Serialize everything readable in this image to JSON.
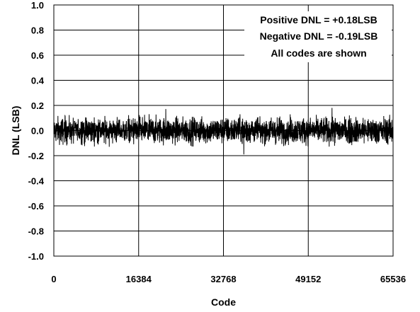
{
  "chart_data": {
    "type": "line",
    "title": "",
    "xlabel": "Code",
    "ylabel": "DNL (LSB)",
    "xlim": [
      0,
      65536
    ],
    "ylim": [
      -1.0,
      1.0
    ],
    "x_ticks": [
      0,
      16384,
      32768,
      49152,
      65536
    ],
    "x_tick_labels": [
      "0",
      "16384",
      "32768",
      "49152",
      "65536"
    ],
    "y_ticks": [
      1.0,
      0.8,
      0.6,
      0.4,
      0.2,
      0.0,
      -0.2,
      -0.4,
      -0.6,
      -0.8,
      -1.0
    ],
    "y_tick_labels": [
      "1.0",
      "0.8",
      "0.6",
      "0.4",
      "0.2",
      "0.0",
      "-0.2",
      "-0.4",
      "-0.6",
      "-0.8",
      "-1.0"
    ],
    "grid": true,
    "series": [
      {
        "name": "",
        "color": "#000000",
        "x_range": [
          0,
          65535
        ],
        "typical_band": [
          -0.13,
          0.13
        ],
        "max": 0.18,
        "min": -0.19
      }
    ],
    "annotations": [
      "Positive DNL = +0.18LSB",
      "Negative DNL = -0.19LSB",
      "All codes are shown"
    ],
    "legend_position": "top-right"
  }
}
